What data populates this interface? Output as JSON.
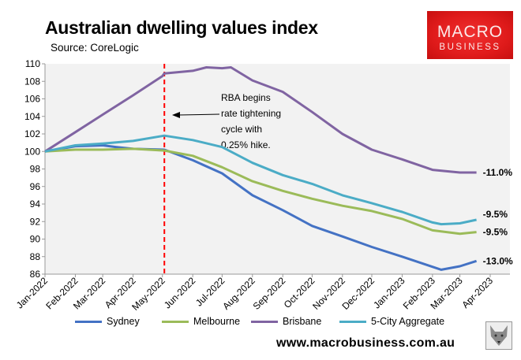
{
  "header": {
    "title": "Australian dwelling values index",
    "source": "Source: CoreLogic",
    "logo_line1": "MACRO",
    "logo_line2": "BUSINESS"
  },
  "footer": {
    "url": "www.macrobusiness.com.au"
  },
  "chart_data": {
    "type": "line",
    "title": "Australian dwelling values index",
    "ylim": [
      86,
      110
    ],
    "yticks": [
      86,
      88,
      90,
      92,
      94,
      96,
      98,
      100,
      102,
      104,
      106,
      108,
      110
    ],
    "xlim": [
      "2022-01-01",
      "2023-04-01"
    ],
    "xticks": [
      {
        "date": "2022-01-01",
        "label": "Jan-2022"
      },
      {
        "date": "2022-02-01",
        "label": "Feb-2022"
      },
      {
        "date": "2022-03-01",
        "label": "Mar-2022"
      },
      {
        "date": "2022-04-01",
        "label": "Apr-2022"
      },
      {
        "date": "2022-05-01",
        "label": "May-2022"
      },
      {
        "date": "2022-06-01",
        "label": "Jun-2022"
      },
      {
        "date": "2022-07-01",
        "label": "Jul-2022"
      },
      {
        "date": "2022-08-01",
        "label": "Aug-2022"
      },
      {
        "date": "2022-09-01",
        "label": "Sep-2022"
      },
      {
        "date": "2022-10-01",
        "label": "Oct-2022"
      },
      {
        "date": "2022-11-01",
        "label": "Nov-2022"
      },
      {
        "date": "2022-12-01",
        "label": "Dec-2022"
      },
      {
        "date": "2023-01-01",
        "label": "Jan-2023"
      },
      {
        "date": "2023-02-01",
        "label": "Feb-2023"
      },
      {
        "date": "2023-03-01",
        "label": "Mar-2023"
      },
      {
        "date": "2023-04-01",
        "label": "Apr-2023"
      }
    ],
    "grid": false,
    "legend": "bottom",
    "series": [
      {
        "name": "Sydney",
        "color": "#4472c4",
        "end_label": "-13.0%",
        "points": [
          [
            "2022-01-01",
            100
          ],
          [
            "2022-02-01",
            100.6
          ],
          [
            "2022-03-01",
            100.7
          ],
          [
            "2022-03-15",
            100.5
          ],
          [
            "2022-04-01",
            100.3
          ],
          [
            "2022-05-03",
            100.2
          ],
          [
            "2022-06-01",
            99.0
          ],
          [
            "2022-07-01",
            97.5
          ],
          [
            "2022-08-01",
            95.0
          ],
          [
            "2022-09-01",
            93.3
          ],
          [
            "2022-10-01",
            91.5
          ],
          [
            "2022-11-01",
            90.3
          ],
          [
            "2022-12-01",
            89.1
          ],
          [
            "2023-01-01",
            88.0
          ],
          [
            "2023-02-10",
            86.5
          ],
          [
            "2023-03-01",
            86.9
          ],
          [
            "2023-03-18",
            87.5
          ]
        ]
      },
      {
        "name": "Melbourne",
        "color": "#9bbb59",
        "end_label": "-9.5%",
        "points": [
          [
            "2022-01-01",
            100
          ],
          [
            "2022-02-01",
            100.2
          ],
          [
            "2022-03-01",
            100.2
          ],
          [
            "2022-04-01",
            100.3
          ],
          [
            "2022-05-03",
            100.1
          ],
          [
            "2022-06-01",
            99.5
          ],
          [
            "2022-07-01",
            98.2
          ],
          [
            "2022-08-01",
            96.6
          ],
          [
            "2022-09-01",
            95.5
          ],
          [
            "2022-10-01",
            94.6
          ],
          [
            "2022-11-01",
            93.8
          ],
          [
            "2022-12-01",
            93.2
          ],
          [
            "2023-01-01",
            92.3
          ],
          [
            "2023-02-01",
            91.0
          ],
          [
            "2023-03-01",
            90.6
          ],
          [
            "2023-03-18",
            90.8
          ]
        ]
      },
      {
        "name": "Brisbane",
        "color": "#8064a2",
        "end_label": "-11.0%",
        "points": [
          [
            "2022-01-01",
            100
          ],
          [
            "2022-02-01",
            102.2
          ],
          [
            "2022-03-01",
            104.2
          ],
          [
            "2022-04-01",
            106.4
          ],
          [
            "2022-05-01",
            108.6
          ],
          [
            "2022-05-03",
            108.9
          ],
          [
            "2022-06-01",
            109.2
          ],
          [
            "2022-06-15",
            109.6
          ],
          [
            "2022-07-01",
            109.5
          ],
          [
            "2022-07-10",
            109.6
          ],
          [
            "2022-08-01",
            108.1
          ],
          [
            "2022-09-01",
            106.8
          ],
          [
            "2022-10-01",
            104.5
          ],
          [
            "2022-11-01",
            102.0
          ],
          [
            "2022-12-01",
            100.2
          ],
          [
            "2023-01-01",
            99.1
          ],
          [
            "2023-02-01",
            97.9
          ],
          [
            "2023-03-01",
            97.6
          ],
          [
            "2023-03-18",
            97.6
          ]
        ]
      },
      {
        "name": "5-City Aggregate",
        "color": "#4bacc6",
        "end_label": "-9.5%",
        "points": [
          [
            "2022-01-01",
            100
          ],
          [
            "2022-02-01",
            100.7
          ],
          [
            "2022-03-01",
            100.9
          ],
          [
            "2022-04-01",
            101.2
          ],
          [
            "2022-05-03",
            101.8
          ],
          [
            "2022-06-01",
            101.3
          ],
          [
            "2022-07-01",
            100.5
          ],
          [
            "2022-08-01",
            98.7
          ],
          [
            "2022-09-01",
            97.3
          ],
          [
            "2022-10-01",
            96.3
          ],
          [
            "2022-11-01",
            95.0
          ],
          [
            "2022-12-01",
            94.1
          ],
          [
            "2023-01-01",
            93.1
          ],
          [
            "2023-02-01",
            91.9
          ],
          [
            "2023-02-10",
            91.7
          ],
          [
            "2023-03-01",
            91.8
          ],
          [
            "2023-03-18",
            92.2
          ]
        ]
      }
    ],
    "annotations": [
      {
        "type": "vline",
        "date": "2022-05-03",
        "color": "#ff0000",
        "style": "dashed"
      },
      {
        "type": "text",
        "lines": [
          "RBA begins",
          "rate tightening",
          "cycle with",
          "0.25% hike."
        ],
        "arrow_to": "2022-05-03",
        "arrow_value": 104.2
      }
    ]
  }
}
